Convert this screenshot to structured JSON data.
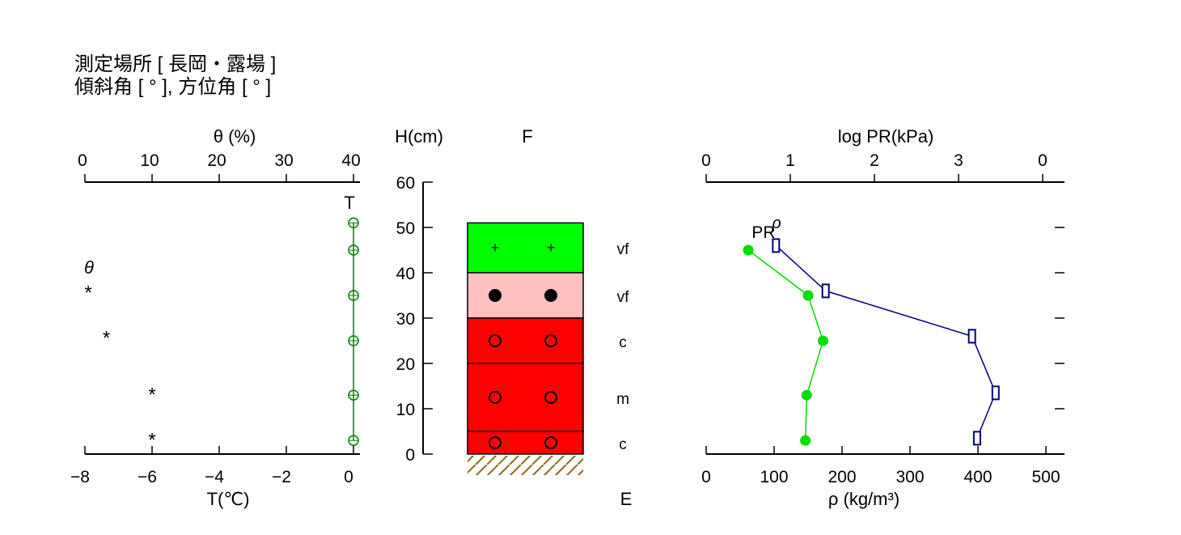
{
  "header": {
    "line1": "測定場所 [ 長岡・露場 ]",
    "line2": "傾斜角 [ ° ], 方位角 [ ° ]"
  },
  "colors": {
    "temperature": "#008000",
    "density": "#00dd00",
    "hardness": "#000080",
    "layer_green": "#00ff00",
    "layer_pink": "#ffc0c0",
    "layer_red": "#ff0000",
    "ground_hatch": "#8b6914"
  },
  "chart_data": [
    {
      "type": "scatter",
      "panel": "temperature-moisture",
      "top_axis": {
        "label": "θ (%)",
        "range": [
          0,
          40
        ],
        "ticks": [
          0,
          10,
          20,
          30,
          40
        ]
      },
      "bottom_axis": {
        "label": "T(℃)",
        "range": [
          -8,
          0
        ],
        "ticks": [
          "−8",
          "−6",
          "−4",
          "−2",
          "0"
        ]
      },
      "series": [
        {
          "name": "T",
          "marker": "circle",
          "points": [
            {
              "h": 51,
              "t": 0
            },
            {
              "h": 45,
              "t": 0
            },
            {
              "h": 35,
              "t": 0
            },
            {
              "h": 25,
              "t": 0
            },
            {
              "h": 13,
              "t": 0
            },
            {
              "h": 3,
              "t": 0
            }
          ]
        },
        {
          "name": "θ",
          "marker": "asterisk",
          "points": [
            {
              "h": 36,
              "theta": 0.5
            },
            {
              "h": 26,
              "theta": 3.2
            },
            {
              "h": 13.5,
              "theta": 10
            },
            {
              "h": 3.5,
              "theta": 10
            }
          ]
        }
      ]
    },
    {
      "type": "table",
      "panel": "snow-stratigraphy",
      "axis": {
        "label": "H(cm)",
        "range": [
          0,
          60
        ],
        "ticks": [
          0,
          10,
          20,
          30,
          40,
          50,
          60
        ]
      },
      "column_label": "F",
      "footer_label": "E",
      "layers": [
        {
          "top": 51,
          "bottom": 40,
          "grain": "+",
          "grain_size": "vf",
          "fill": "green"
        },
        {
          "top": 40,
          "bottom": 30,
          "grain": "●",
          "grain_size": "vf",
          "fill": "pink"
        },
        {
          "top": 30,
          "bottom": 20,
          "grain": "○",
          "grain_size": "c",
          "fill": "red"
        },
        {
          "top": 20,
          "bottom": 5,
          "grain": "○",
          "grain_size": "m",
          "fill": "red"
        },
        {
          "top": 5,
          "bottom": 0,
          "grain": "○",
          "grain_size": "c",
          "fill": "red"
        }
      ]
    },
    {
      "type": "line",
      "panel": "density-hardness",
      "top_axis": {
        "label": "log PR(kPa)",
        "ticks": [
          "0",
          "1",
          "2",
          "3",
          "0"
        ]
      },
      "bottom_axis": {
        "label": "ρ (kg/m³)",
        "range": [
          0,
          500
        ],
        "ticks": [
          0,
          100,
          200,
          300,
          400,
          500
        ]
      },
      "series": [
        {
          "name": "ρ",
          "points": [
            {
              "h": 45,
              "rho": 62
            },
            {
              "h": 35,
              "rho": 150
            },
            {
              "h": 25,
              "rho": 172
            },
            {
              "h": 13,
              "rho": 148
            },
            {
              "h": 3,
              "rho": 146
            }
          ]
        },
        {
          "name": "PR",
          "points": [
            {
              "h": 46,
              "log_pr": 0.83
            },
            {
              "h": 36,
              "log_pr": 1.42
            },
            {
              "h": 26,
              "log_pr": 3.16
            },
            {
              "h": 13.5,
              "log_pr": 3.44
            },
            {
              "h": 3.5,
              "log_pr": 3.22
            }
          ]
        }
      ]
    }
  ]
}
